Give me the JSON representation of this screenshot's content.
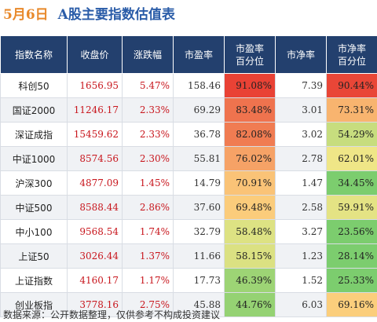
{
  "header": {
    "date": "5月6日",
    "title": "A股主要指数估值表"
  },
  "table": {
    "columns": [
      [
        "指数名称"
      ],
      [
        "收盘价"
      ],
      [
        "涨跌幅"
      ],
      [
        "市盈率"
      ],
      [
        "市盈率",
        "百分位"
      ],
      [
        "市净率"
      ],
      [
        "市净率",
        "百分位"
      ]
    ],
    "rows": [
      [
        "科创50",
        "1656.95",
        "5.47%",
        "158.46",
        "91.08%",
        "7.39",
        "90.44%"
      ],
      [
        "国证2000",
        "11246.17",
        "2.33%",
        "69.29",
        "83.48%",
        "3.01",
        "73.31%"
      ],
      [
        "深证成指",
        "15459.62",
        "2.33%",
        "36.78",
        "82.08%",
        "3.02",
        "54.29%"
      ],
      [
        "中证1000",
        "8574.56",
        "2.30%",
        "55.81",
        "76.02%",
        "2.78",
        "62.01%"
      ],
      [
        "沪深300",
        "4877.09",
        "1.45%",
        "14.79",
        "70.91%",
        "1.47",
        "34.45%"
      ],
      [
        "中证500",
        "8588.44",
        "2.86%",
        "37.60",
        "69.48%",
        "2.58",
        "59.91%"
      ],
      [
        "中小100",
        "9568.54",
        "1.74%",
        "32.79",
        "58.48%",
        "3.27",
        "23.56%"
      ],
      [
        "上证50",
        "3026.44",
        "1.37%",
        "11.66",
        "58.15%",
        "1.23",
        "28.14%"
      ],
      [
        "上证指数",
        "4160.17",
        "1.17%",
        "17.73",
        "46.39%",
        "1.52",
        "25.33%"
      ],
      [
        "创业板指",
        "3778.16",
        "2.75%",
        "45.88",
        "44.76%",
        "6.03",
        "69.16%"
      ]
    ]
  },
  "footer": "数据来源：公开数据整理，仅供参考不构成投资建议"
}
